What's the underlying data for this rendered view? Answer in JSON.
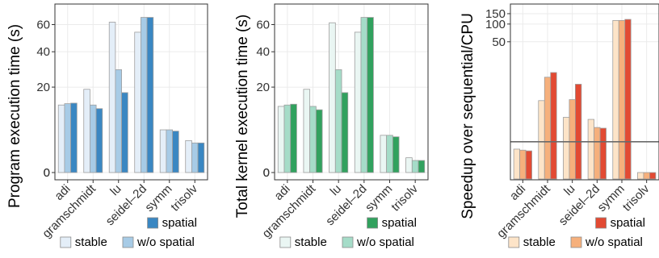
{
  "chart_data": [
    {
      "type": "bar",
      "ylabel": "Program execution time (s)",
      "scale": "sqrt",
      "ylim": [
        0,
        72
      ],
      "yticks": [
        0,
        20,
        40,
        60
      ],
      "categories": [
        "adi",
        "gramschmidt",
        "lu",
        "seidel–2d",
        "symm",
        "trisolv"
      ],
      "series": [
        {
          "name": "stable",
          "values": [
            12.5,
            19.0,
            62.0,
            54.0,
            5.0,
            2.8
          ]
        },
        {
          "name": "w/o spatial",
          "values": [
            13.0,
            12.5,
            29.0,
            66.0,
            5.0,
            2.4
          ]
        },
        {
          "name": "spatial",
          "values": [
            13.2,
            11.2,
            17.5,
            66.0,
            4.7,
            2.4
          ]
        }
      ],
      "colors": {
        "stable": "#e4eef8",
        "w/o spatial": "#a7cbe6",
        "spatial": "#3a87c2"
      },
      "legend": {
        "row1": [
          "spatial"
        ],
        "row2": [
          "stable",
          "w/o spatial"
        ],
        "position": "bottom"
      }
    },
    {
      "type": "bar",
      "ylabel": "Total kernel execution time (s)",
      "scale": "sqrt",
      "ylim": [
        0,
        72
      ],
      "yticks": [
        0,
        20,
        40,
        60
      ],
      "categories": [
        "adi",
        "gramschmidt",
        "lu",
        "seidel–2d",
        "symm",
        "trisolv"
      ],
      "series": [
        {
          "name": "stable",
          "values": [
            12.0,
            19.0,
            61.5,
            54.0,
            3.8,
            0.6
          ]
        },
        {
          "name": "w/o spatial",
          "values": [
            12.5,
            12.0,
            29.0,
            66.0,
            3.8,
            0.4
          ]
        },
        {
          "name": "spatial",
          "values": [
            12.8,
            10.8,
            17.5,
            66.0,
            3.5,
            0.4
          ]
        }
      ],
      "colors": {
        "stable": "#eaf6f3",
        "w/o spatial": "#a5dcc8",
        "spatial": "#31a15e"
      },
      "legend": {
        "row1": [
          "spatial"
        ],
        "row2": [
          "stable",
          "w/o spatial"
        ],
        "position": "bottom"
      }
    },
    {
      "type": "bar",
      "ylabel": "Speedup over sequential/CPU",
      "scale": "log",
      "ylim": [
        0.3,
        170
      ],
      "yticks": [
        50,
        100,
        150
      ],
      "reference_line": 1,
      "categories": [
        "adi",
        "gramschmidt",
        "lu",
        "seidel–2d",
        "symm",
        "trisolv"
      ],
      "series": [
        {
          "name": "stable",
          "values": [
            0.75,
            5.0,
            2.6,
            2.4,
            115.0,
            0.3
          ]
        },
        {
          "name": "w/o spatial",
          "values": [
            0.72,
            12.5,
            5.2,
            1.75,
            115.0,
            0.3
          ]
        },
        {
          "name": "spatial",
          "values": [
            0.7,
            15.0,
            9.5,
            1.7,
            120.0,
            0.3
          ]
        }
      ],
      "colors": {
        "stable": "#fde4c8",
        "w/o spatial": "#f6b07c",
        "spatial": "#e24a33"
      },
      "legend": {
        "row1": [
          "spatial"
        ],
        "row2": [
          "stable",
          "w/o spatial"
        ],
        "position": "bottom"
      }
    }
  ]
}
